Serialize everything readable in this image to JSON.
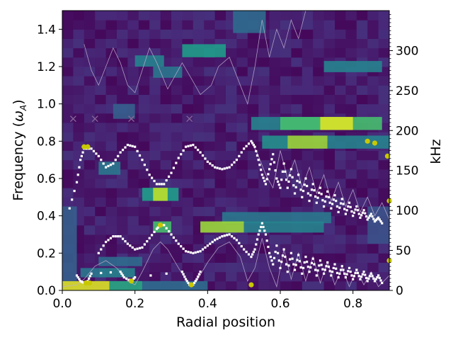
{
  "chart_data": {
    "type": "heatmap",
    "xlabel": "Radial position",
    "ylabel_prefix": "Frequency (",
    "ylabel_symbol": "ω",
    "ylabel_sub": "A",
    "ylabel_suffix": ")",
    "y2label": "kHz",
    "xlim": [
      0.0,
      0.9
    ],
    "ylim": [
      0.0,
      1.5
    ],
    "y2lim": [
      0,
      350
    ],
    "xticks": [
      0.0,
      0.2,
      0.4,
      0.6,
      0.8
    ],
    "xtick_labels": [
      "0.0",
      "0.2",
      "0.4",
      "0.6",
      "0.8"
    ],
    "yticks": [
      0.0,
      0.2,
      0.4,
      0.6,
      0.8,
      1.0,
      1.2,
      1.4
    ],
    "ytick_labels": [
      "0.0",
      "0.2",
      "0.4",
      "0.6",
      "0.8",
      "1.0",
      "1.2",
      "1.4"
    ],
    "y2ticks": [
      0,
      50,
      100,
      150,
      200,
      250,
      300
    ],
    "y2tick_labels": [
      "0",
      "50",
      "100",
      "150",
      "200",
      "250",
      "300"
    ],
    "colormap": "viridis",
    "background_color": "#440154",
    "heat_bands": [
      {
        "x": [
          0.47,
          0.56
        ],
        "y": [
          1.38,
          1.5
        ],
        "v": 0.35
      },
      {
        "x": [
          0.2,
          0.28
        ],
        "y": [
          1.2,
          1.26
        ],
        "v": 0.45
      },
      {
        "x": [
          0.33,
          0.45
        ],
        "y": [
          1.25,
          1.32
        ],
        "v": 0.55
      },
      {
        "x": [
          0.25,
          0.33
        ],
        "y": [
          1.14,
          1.2
        ],
        "v": 0.4
      },
      {
        "x": [
          0.72,
          0.88
        ],
        "y": [
          1.17,
          1.23
        ],
        "v": 0.45
      },
      {
        "x": [
          0.14,
          0.2
        ],
        "y": [
          0.92,
          1.0
        ],
        "v": 0.3
      },
      {
        "x": [
          0.52,
          0.76
        ],
        "y": [
          0.86,
          0.93
        ],
        "v": 0.45
      },
      {
        "x": [
          0.6,
          0.88
        ],
        "y": [
          0.86,
          0.93
        ],
        "v": 0.7
      },
      {
        "x": [
          0.71,
          0.8
        ],
        "y": [
          0.86,
          0.93
        ],
        "v": 0.95
      },
      {
        "x": [
          0.55,
          0.62
        ],
        "y": [
          0.76,
          0.83
        ],
        "v": 0.5
      },
      {
        "x": [
          0.62,
          0.73
        ],
        "y": [
          0.76,
          0.83
        ],
        "v": 0.85
      },
      {
        "x": [
          0.73,
          0.9
        ],
        "y": [
          0.76,
          0.83
        ],
        "v": 0.45
      },
      {
        "x": [
          0.1,
          0.16
        ],
        "y": [
          0.62,
          0.69
        ],
        "v": 0.4
      },
      {
        "x": [
          0.22,
          0.32
        ],
        "y": [
          0.48,
          0.55
        ],
        "v": 0.55
      },
      {
        "x": [
          0.25,
          0.29
        ],
        "y": [
          0.48,
          0.55
        ],
        "v": 0.9
      },
      {
        "x": [
          0.44,
          0.74
        ],
        "y": [
          0.36,
          0.42
        ],
        "v": 0.4
      },
      {
        "x": [
          0.38,
          0.5
        ],
        "y": [
          0.31,
          0.37
        ],
        "v": 0.85
      },
      {
        "x": [
          0.5,
          0.72
        ],
        "y": [
          0.31,
          0.37
        ],
        "v": 0.45
      },
      {
        "x": [
          0.25,
          0.3
        ],
        "y": [
          0.31,
          0.37
        ],
        "v": 0.7
      },
      {
        "x": [
          0.1,
          0.22
        ],
        "y": [
          0.13,
          0.18
        ],
        "v": 0.35
      },
      {
        "x": [
          0.05,
          0.1
        ],
        "y": [
          0.07,
          0.12
        ],
        "v": 0.4
      },
      {
        "x": [
          0.1,
          0.2
        ],
        "y": [
          0.07,
          0.12
        ],
        "v": 0.45
      },
      {
        "x": [
          0.0,
          0.13
        ],
        "y": [
          0.0,
          0.05
        ],
        "v": 0.95
      },
      {
        "x": [
          0.13,
          0.22
        ],
        "y": [
          0.0,
          0.05
        ],
        "v": 0.6
      },
      {
        "x": [
          0.22,
          0.4
        ],
        "y": [
          0.0,
          0.05
        ],
        "v": 0.35
      },
      {
        "x": [
          0.0,
          0.04
        ],
        "y": [
          0.05,
          0.45
        ],
        "v": 0.3
      },
      {
        "x": [
          0.84,
          0.9
        ],
        "y": [
          0.25,
          0.45
        ],
        "v": 0.25
      }
    ],
    "continuum_curves": [
      {
        "name": "lower",
        "points": [
          [
            0.0,
            0.02
          ],
          [
            0.04,
            0.03
          ],
          [
            0.06,
            0.06
          ],
          [
            0.09,
            0.13
          ],
          [
            0.12,
            0.16
          ],
          [
            0.15,
            0.12
          ],
          [
            0.18,
            0.05
          ],
          [
            0.2,
            0.03
          ],
          [
            0.22,
            0.1
          ],
          [
            0.25,
            0.22
          ],
          [
            0.27,
            0.26
          ],
          [
            0.29,
            0.22
          ],
          [
            0.32,
            0.12
          ],
          [
            0.35,
            0.03
          ],
          [
            0.37,
            0.05
          ],
          [
            0.4,
            0.15
          ],
          [
            0.43,
            0.23
          ],
          [
            0.46,
            0.26
          ],
          [
            0.49,
            0.18
          ],
          [
            0.51,
            0.05
          ],
          [
            0.53,
            0.12
          ],
          [
            0.55,
            0.28
          ],
          [
            0.57,
            0.12
          ],
          [
            0.59,
            0.02
          ],
          [
            0.61,
            0.22
          ],
          [
            0.63,
            0.06
          ],
          [
            0.65,
            0.2
          ],
          [
            0.67,
            0.05
          ],
          [
            0.69,
            0.18
          ],
          [
            0.71,
            0.04
          ],
          [
            0.73,
            0.15
          ],
          [
            0.75,
            0.03
          ],
          [
            0.77,
            0.12
          ],
          [
            0.79,
            0.02
          ],
          [
            0.81,
            0.11
          ],
          [
            0.83,
            0.03
          ],
          [
            0.85,
            0.1
          ],
          [
            0.87,
            0.02
          ],
          [
            0.9,
            0.08
          ]
        ]
      },
      {
        "name": "upper",
        "points": [
          [
            0.06,
            1.32
          ],
          [
            0.08,
            1.18
          ],
          [
            0.1,
            1.1
          ],
          [
            0.12,
            1.2
          ],
          [
            0.14,
            1.3
          ],
          [
            0.16,
            1.22
          ],
          [
            0.18,
            1.1
          ],
          [
            0.2,
            1.06
          ],
          [
            0.22,
            1.18
          ],
          [
            0.24,
            1.3
          ],
          [
            0.26,
            1.22
          ],
          [
            0.29,
            1.08
          ],
          [
            0.31,
            1.15
          ],
          [
            0.33,
            1.22
          ],
          [
            0.36,
            1.12
          ],
          [
            0.38,
            1.05
          ],
          [
            0.41,
            1.1
          ],
          [
            0.43,
            1.2
          ],
          [
            0.46,
            1.25
          ],
          [
            0.49,
            1.1
          ],
          [
            0.51,
            1.0
          ],
          [
            0.53,
            1.2
          ],
          [
            0.55,
            1.45
          ],
          [
            0.57,
            1.25
          ],
          [
            0.59,
            1.4
          ],
          [
            0.61,
            1.3
          ],
          [
            0.63,
            1.45
          ],
          [
            0.65,
            1.35
          ],
          [
            0.67,
            1.5
          ]
        ]
      },
      {
        "name": "mid",
        "points": [
          [
            0.52,
            0.8
          ],
          [
            0.54,
            0.72
          ],
          [
            0.56,
            0.62
          ],
          [
            0.58,
            0.55
          ],
          [
            0.6,
            0.75
          ],
          [
            0.62,
            0.6
          ],
          [
            0.64,
            0.7
          ],
          [
            0.66,
            0.55
          ],
          [
            0.68,
            0.66
          ],
          [
            0.7,
            0.52
          ],
          [
            0.72,
            0.62
          ],
          [
            0.74,
            0.48
          ],
          [
            0.76,
            0.58
          ],
          [
            0.78,
            0.45
          ],
          [
            0.8,
            0.54
          ],
          [
            0.82,
            0.42
          ],
          [
            0.84,
            0.5
          ],
          [
            0.86,
            0.4
          ],
          [
            0.88,
            0.47
          ],
          [
            0.9,
            0.38
          ]
        ]
      }
    ],
    "upper_branch": [
      [
        0.02,
        0.44
      ],
      [
        0.04,
        0.58
      ],
      [
        0.05,
        0.7
      ],
      [
        0.06,
        0.76
      ],
      [
        0.08,
        0.76
      ],
      [
        0.1,
        0.72
      ],
      [
        0.12,
        0.66
      ],
      [
        0.14,
        0.68
      ],
      [
        0.16,
        0.74
      ],
      [
        0.18,
        0.78
      ],
      [
        0.2,
        0.77
      ],
      [
        0.22,
        0.7
      ],
      [
        0.24,
        0.62
      ],
      [
        0.26,
        0.57
      ],
      [
        0.28,
        0.57
      ],
      [
        0.3,
        0.63
      ],
      [
        0.32,
        0.71
      ],
      [
        0.34,
        0.77
      ],
      [
        0.36,
        0.78
      ],
      [
        0.38,
        0.74
      ],
      [
        0.4,
        0.69
      ],
      [
        0.42,
        0.66
      ],
      [
        0.44,
        0.65
      ],
      [
        0.46,
        0.66
      ],
      [
        0.48,
        0.7
      ],
      [
        0.5,
        0.76
      ],
      [
        0.52,
        0.8
      ],
      [
        0.53,
        0.77
      ],
      [
        0.54,
        0.7
      ],
      [
        0.55,
        0.62
      ],
      [
        0.56,
        0.57
      ],
      [
        0.57,
        0.65
      ],
      [
        0.58,
        0.73
      ],
      [
        0.59,
        0.6
      ],
      [
        0.6,
        0.55
      ],
      [
        0.61,
        0.68
      ],
      [
        0.62,
        0.55
      ],
      [
        0.63,
        0.65
      ],
      [
        0.64,
        0.52
      ],
      [
        0.65,
        0.62
      ],
      [
        0.66,
        0.5
      ],
      [
        0.67,
        0.6
      ],
      [
        0.68,
        0.48
      ],
      [
        0.69,
        0.57
      ],
      [
        0.7,
        0.47
      ],
      [
        0.71,
        0.55
      ],
      [
        0.72,
        0.45
      ],
      [
        0.73,
        0.53
      ],
      [
        0.74,
        0.44
      ],
      [
        0.75,
        0.51
      ],
      [
        0.76,
        0.42
      ],
      [
        0.77,
        0.49
      ],
      [
        0.78,
        0.41
      ],
      [
        0.79,
        0.47
      ],
      [
        0.8,
        0.4
      ],
      [
        0.81,
        0.45
      ],
      [
        0.82,
        0.39
      ],
      [
        0.83,
        0.43
      ],
      [
        0.84,
        0.38
      ],
      [
        0.85,
        0.41
      ],
      [
        0.86,
        0.37
      ],
      [
        0.87,
        0.39
      ],
      [
        0.88,
        0.36
      ]
    ],
    "lower_branch": [
      [
        0.1,
        0.2
      ],
      [
        0.12,
        0.26
      ],
      [
        0.14,
        0.29
      ],
      [
        0.16,
        0.29
      ],
      [
        0.18,
        0.25
      ],
      [
        0.2,
        0.22
      ],
      [
        0.22,
        0.23
      ],
      [
        0.24,
        0.28
      ],
      [
        0.26,
        0.33
      ],
      [
        0.27,
        0.35
      ],
      [
        0.28,
        0.35
      ],
      [
        0.3,
        0.3
      ],
      [
        0.32,
        0.25
      ],
      [
        0.34,
        0.21
      ],
      [
        0.36,
        0.2
      ],
      [
        0.38,
        0.21
      ],
      [
        0.4,
        0.24
      ],
      [
        0.42,
        0.27
      ],
      [
        0.44,
        0.29
      ],
      [
        0.46,
        0.3
      ],
      [
        0.48,
        0.27
      ],
      [
        0.5,
        0.22
      ],
      [
        0.52,
        0.18
      ],
      [
        0.53,
        0.22
      ],
      [
        0.54,
        0.3
      ],
      [
        0.55,
        0.36
      ],
      [
        0.56,
        0.3
      ],
      [
        0.57,
        0.2
      ],
      [
        0.58,
        0.14
      ],
      [
        0.59,
        0.24
      ],
      [
        0.6,
        0.12
      ],
      [
        0.61,
        0.22
      ],
      [
        0.62,
        0.1
      ],
      [
        0.63,
        0.2
      ],
      [
        0.64,
        0.11
      ],
      [
        0.65,
        0.19
      ],
      [
        0.66,
        0.09
      ],
      [
        0.67,
        0.18
      ],
      [
        0.68,
        0.1
      ],
      [
        0.69,
        0.17
      ],
      [
        0.7,
        0.08
      ],
      [
        0.71,
        0.16
      ],
      [
        0.72,
        0.09
      ],
      [
        0.73,
        0.15
      ],
      [
        0.74,
        0.08
      ],
      [
        0.75,
        0.14
      ],
      [
        0.76,
        0.07
      ],
      [
        0.77,
        0.13
      ],
      [
        0.78,
        0.07
      ],
      [
        0.79,
        0.12
      ],
      [
        0.8,
        0.06
      ],
      [
        0.81,
        0.11
      ],
      [
        0.82,
        0.06
      ],
      [
        0.83,
        0.1
      ],
      [
        0.84,
        0.05
      ],
      [
        0.85,
        0.09
      ],
      [
        0.86,
        0.05
      ],
      [
        0.87,
        0.08
      ],
      [
        0.88,
        0.04
      ]
    ],
    "bottom_branch": [
      [
        0.04,
        0.08
      ],
      [
        0.05,
        0.05
      ],
      [
        0.06,
        0.04
      ],
      [
        0.07,
        0.05
      ],
      [
        0.08,
        0.09
      ],
      [
        0.16,
        0.1
      ],
      [
        0.17,
        0.07
      ],
      [
        0.19,
        0.05
      ],
      [
        0.2,
        0.07
      ],
      [
        0.33,
        0.1
      ],
      [
        0.34,
        0.06
      ],
      [
        0.35,
        0.03
      ],
      [
        0.36,
        0.03
      ],
      [
        0.37,
        0.06
      ],
      [
        0.38,
        0.1
      ]
    ],
    "highlight_points": [
      [
        0.06,
        0.77
      ],
      [
        0.07,
        0.77
      ],
      [
        0.065,
        0.04
      ],
      [
        0.075,
        0.04
      ],
      [
        0.19,
        0.05
      ],
      [
        0.27,
        0.35
      ],
      [
        0.355,
        0.03
      ],
      [
        0.52,
        0.03
      ],
      [
        0.84,
        0.8
      ],
      [
        0.86,
        0.79
      ],
      [
        0.9,
        0.16
      ],
      [
        0.895,
        0.72
      ],
      [
        0.9,
        0.48
      ]
    ],
    "cross_markers": [
      [
        0.03,
        0.92
      ],
      [
        0.09,
        0.92
      ],
      [
        0.19,
        0.92
      ],
      [
        0.35,
        0.92
      ]
    ],
    "colors": {
      "white_markers": "#ffffff",
      "yellow_points": "#c8c800",
      "cross_markers": "#8a6a9a",
      "continuum_lines": "#c0b0d0"
    }
  }
}
